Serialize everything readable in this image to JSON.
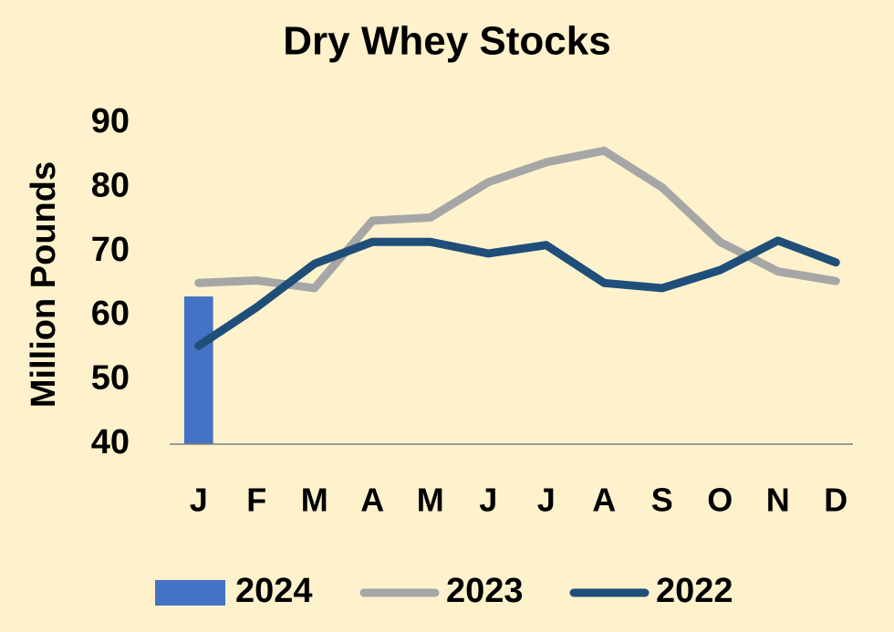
{
  "chart_data": {
    "type": "combo",
    "title": "Dry Whey Stocks",
    "y_label": "Million Pounds",
    "categories": [
      "J",
      "F",
      "M",
      "A",
      "M",
      "J",
      "J",
      "A",
      "S",
      "O",
      "N",
      "D"
    ],
    "series": [
      {
        "name": "2024",
        "type": "bar",
        "color": "#4472c4",
        "values": [
          63,
          null,
          null,
          null,
          null,
          null,
          null,
          null,
          null,
          null,
          null,
          null
        ]
      },
      {
        "name": "2023",
        "type": "line",
        "color": "#a6a6a6",
        "values": [
          65.1,
          65.5,
          64.3,
          74.8,
          75.3,
          80.8,
          83.9,
          85.7,
          80,
          71.5,
          66.9,
          65.4
        ]
      },
      {
        "name": "2022",
        "type": "line",
        "color": "#1f4e79",
        "values": [
          55.3,
          61.3,
          68.1,
          71.5,
          71.5,
          69.7,
          71,
          65.1,
          64.3,
          67.1,
          71.7,
          68.3
        ]
      }
    ],
    "ylim": [
      40,
      90
    ],
    "yticks": [
      40,
      50,
      60,
      70,
      80,
      90
    ],
    "grid": false,
    "legend": "bottom"
  }
}
